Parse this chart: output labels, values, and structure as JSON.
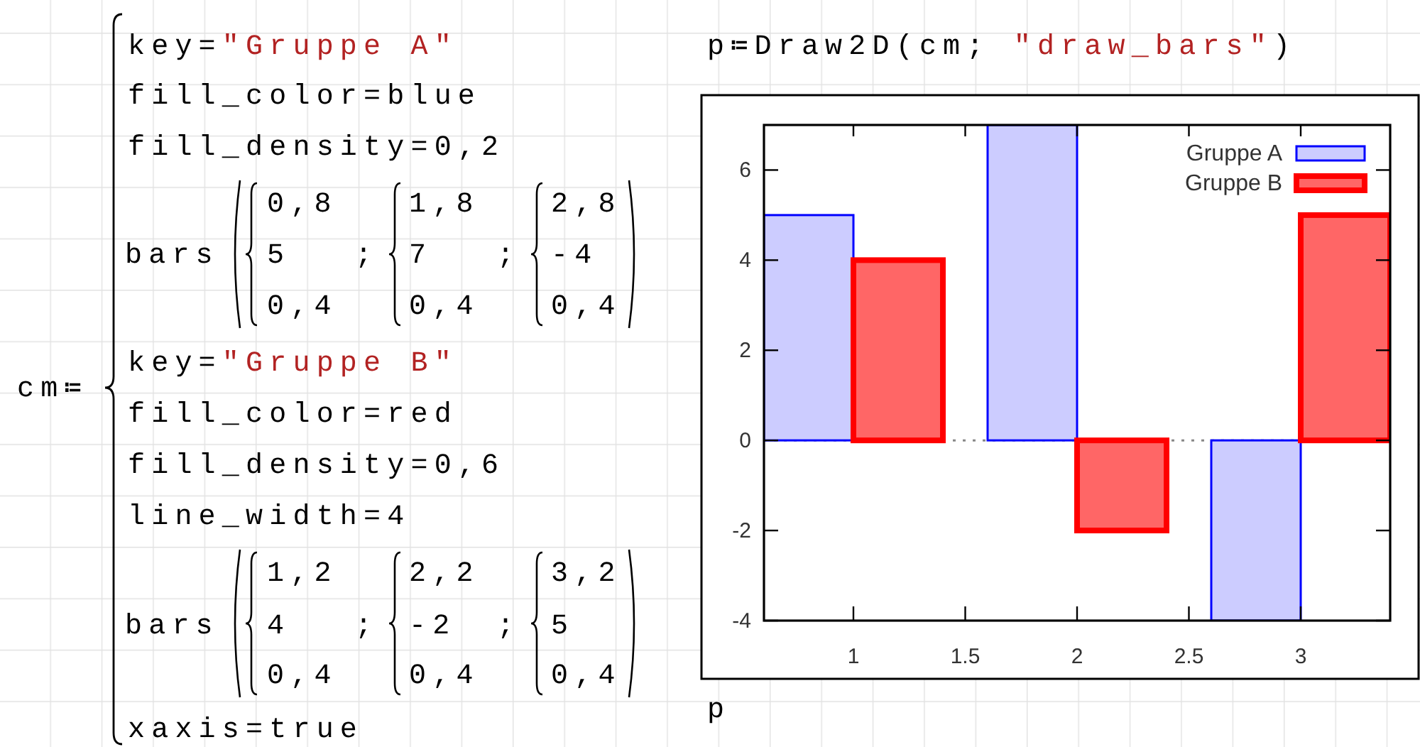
{
  "chart_data": {
    "type": "bar",
    "title": "p≔Draw2D(cm; \"draw_bars\")",
    "series": [
      {
        "name": "Gruppe A",
        "color": "#ccccff",
        "x": [
          0.8,
          1.8,
          2.8
        ],
        "values": [
          5,
          7,
          -4
        ]
      },
      {
        "name": "Gruppe B",
        "color": "#ff6666",
        "x": [
          1.2,
          2.2,
          3.2
        ],
        "values": [
          4,
          -2,
          5
        ]
      }
    ],
    "xlim": [
      0.6,
      3.4
    ],
    "xticks": [
      1,
      1.5,
      2,
      2.5,
      3
    ],
    "ylim": [
      -4,
      7
    ],
    "yticks": [
      -4,
      -2,
      0,
      2,
      4,
      6
    ],
    "ref_lines": [
      {
        "axis": "y",
        "value": 0,
        "color": "#888888",
        "line_style": "dotted"
      }
    ],
    "legend": "top right",
    "annotations": [
      "cm≔",
      "key=\"Gruppe A\"",
      "fill_color=blue",
      "fill_density=0,2",
      "bars",
      "0,8",
      "5",
      "0,4",
      ";",
      "1,8",
      "7",
      "0,4",
      ";",
      "2,8",
      "-4",
      "0,4",
      "key=\"Gruppe B\"",
      "fill_color=red",
      "fill_density=0,6",
      "line_width=4",
      "bars",
      "1,2",
      "4",
      "0,4",
      ";",
      "2,2",
      "-2",
      "0,4",
      ";",
      "3,2",
      "5",
      "0,4",
      "xaxis=true",
      "p"
    ]
  }
}
